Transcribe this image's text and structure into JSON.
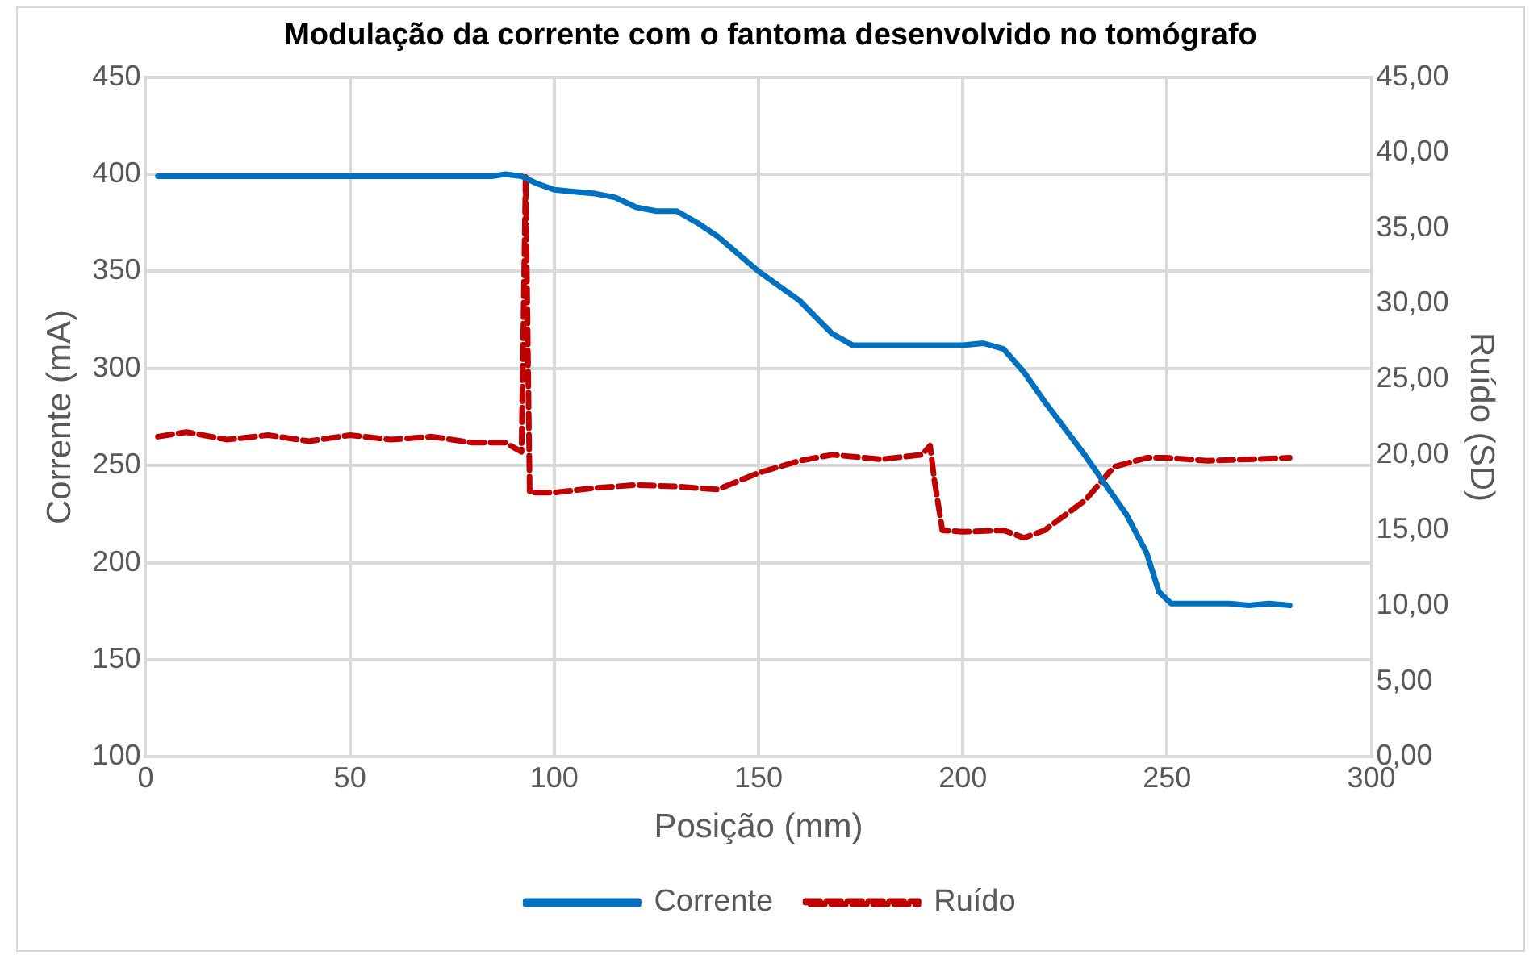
{
  "chart_data": {
    "type": "line",
    "title": "Modulação da corrente com o fantoma desenvolvido no tomógrafo",
    "xlabel": "Posição (mm)",
    "ylabel": "Corrente (mA)",
    "y2label": "Ruído (SD)",
    "xlim": [
      0,
      300
    ],
    "xticks": [
      0,
      50,
      100,
      150,
      200,
      250,
      300
    ],
    "ylim": [
      100,
      450
    ],
    "yticks": [
      100,
      150,
      200,
      250,
      300,
      350,
      400,
      450
    ],
    "y2lim": [
      0,
      45
    ],
    "y2ticks": [
      {
        "value": 0,
        "label": "0,00"
      },
      {
        "value": 5,
        "label": "5,00"
      },
      {
        "value": 10,
        "label": "10,00"
      },
      {
        "value": 15,
        "label": "15,00"
      },
      {
        "value": 20,
        "label": "20,00"
      },
      {
        "value": 25,
        "label": "25,00"
      },
      {
        "value": 30,
        "label": "30,00"
      },
      {
        "value": 35,
        "label": "35,00"
      },
      {
        "value": 40,
        "label": "40,00"
      },
      {
        "value": 45,
        "label": "45,00"
      }
    ],
    "grid": true,
    "legend": "bottom",
    "marker": "none",
    "series": [
      {
        "name": "Corrente",
        "color": "#0070c0",
        "line_style": "solid",
        "x": [
          3,
          85,
          88,
          92,
          96,
          100,
          105,
          110,
          115,
          120,
          125,
          130,
          135,
          140,
          150,
          160,
          168,
          173,
          190,
          200,
          205,
          210,
          215,
          220,
          230,
          240,
          245,
          248,
          251,
          265,
          270,
          275,
          280
        ],
        "values": [
          399,
          399,
          400,
          399,
          395,
          392,
          391,
          390,
          388,
          383,
          381,
          381,
          375,
          368,
          350,
          335,
          318,
          312,
          312,
          312,
          313,
          310,
          298,
          283,
          255,
          225,
          205,
          185,
          179,
          179,
          178,
          179,
          178
        ]
      },
      {
        "name": "Ruído",
        "color": "#c00000",
        "line_style": "dashed",
        "axis": "y2",
        "x": [
          3,
          10,
          20,
          30,
          40,
          50,
          60,
          70,
          80,
          88,
          92,
          93,
          94,
          100,
          110,
          120,
          130,
          140,
          150,
          160,
          168,
          180,
          190,
          192,
          193,
          195,
          200,
          210,
          215,
          220,
          230,
          237,
          245,
          250,
          260,
          270,
          280
        ],
        "values": [
          21.2,
          21.5,
          21.0,
          21.3,
          20.9,
          21.3,
          21.0,
          21.2,
          20.8,
          20.8,
          20.2,
          38.4,
          17.5,
          17.5,
          17.8,
          18.0,
          17.9,
          17.7,
          18.8,
          19.6,
          20.0,
          19.7,
          20.0,
          20.6,
          18.4,
          15.0,
          14.9,
          15.0,
          14.5,
          15.0,
          17.0,
          19.2,
          19.8,
          19.8,
          19.6,
          19.7,
          19.8
        ]
      }
    ]
  }
}
